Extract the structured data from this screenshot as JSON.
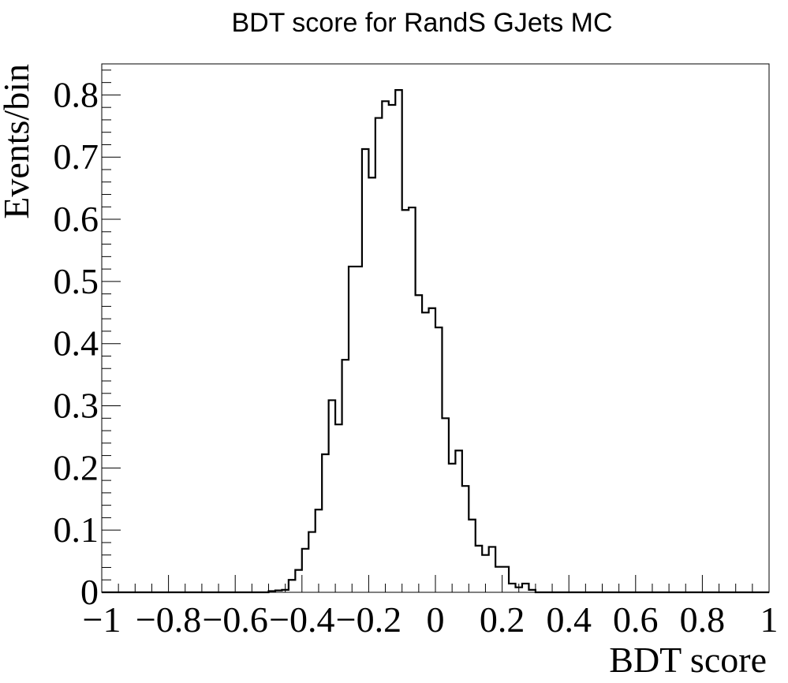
{
  "chart_data": {
    "type": "bar",
    "title": "BDT score for RandS GJets MC",
    "xlabel": "BDT score",
    "ylabel": "Events/bin",
    "xlim": [
      -1,
      1
    ],
    "ylim": [
      0,
      0.85
    ],
    "grid": false,
    "x_ticks": [
      -1,
      -0.8,
      -0.6,
      -0.4,
      -0.2,
      0,
      0.2,
      0.4,
      0.6,
      0.8,
      1
    ],
    "x_tick_labels": [
      "−1",
      "−0.8",
      "−0.6",
      "−0.4",
      "−0.2",
      "0",
      "0.2",
      "0.4",
      "0.6",
      "0.8",
      "1"
    ],
    "y_ticks": [
      0,
      0.1,
      0.2,
      0.3,
      0.4,
      0.5,
      0.6,
      0.7,
      0.8
    ],
    "y_tick_labels": [
      "0",
      "0.1",
      "0.2",
      "0.3",
      "0.4",
      "0.5",
      "0.6",
      "0.7",
      "0.8"
    ],
    "bin_edges": [
      -1,
      -0.98,
      -0.96,
      -0.94,
      -0.92,
      -0.9,
      -0.88,
      -0.86,
      -0.84,
      -0.82,
      -0.8,
      -0.78,
      -0.76,
      -0.74,
      -0.72,
      -0.7,
      -0.68,
      -0.66,
      -0.64,
      -0.62,
      -0.6,
      -0.58,
      -0.56,
      -0.54,
      -0.52,
      -0.5,
      -0.48,
      -0.46,
      -0.44,
      -0.42,
      -0.4,
      -0.38,
      -0.36,
      -0.34,
      -0.32,
      -0.3,
      -0.28,
      -0.26,
      -0.24,
      -0.22,
      -0.2,
      -0.18,
      -0.16,
      -0.14,
      -0.12,
      -0.1,
      -0.08,
      -0.06,
      -0.04,
      -0.02,
      0,
      0.02,
      0.04,
      0.06,
      0.08,
      0.1,
      0.12,
      0.14,
      0.16,
      0.18,
      0.2,
      0.22,
      0.24,
      0.26,
      0.28,
      0.3,
      0.32,
      0.34,
      0.36,
      0.38,
      0.4,
      0.42,
      0.44,
      0.46,
      0.48,
      0.5,
      0.52,
      0.54,
      0.56,
      0.58,
      0.6,
      0.62,
      0.64,
      0.66,
      0.68,
      0.7,
      0.72,
      0.74,
      0.76,
      0.78,
      0.8,
      0.82,
      0.84,
      0.86,
      0.88,
      0.9,
      0.92,
      0.94,
      0.96,
      0.98,
      1
    ],
    "values": [
      0,
      0,
      0,
      0,
      0,
      0,
      0,
      0,
      0,
      0,
      0,
      0,
      0,
      0,
      0,
      0,
      0,
      0,
      0,
      0,
      0,
      0,
      0,
      0,
      0,
      0.002,
      0.003,
      0.004,
      0.02,
      0.036,
      0.07,
      0.097,
      0.133,
      0.222,
      0.309,
      0.27,
      0.374,
      0.524,
      0.524,
      0.713,
      0.667,
      0.763,
      0.79,
      0.784,
      0.808,
      0.615,
      0.619,
      0.478,
      0.45,
      0.457,
      0.426,
      0.28,
      0.207,
      0.228,
      0.171,
      0.117,
      0.075,
      0.06,
      0.073,
      0.041,
      0.041,
      0.014,
      0.008,
      0.014,
      0.004,
      0,
      0,
      0,
      0,
      0,
      0,
      0,
      0,
      0,
      0,
      0,
      0,
      0,
      0,
      0,
      0,
      0,
      0,
      0,
      0,
      0,
      0,
      0,
      0,
      0,
      0,
      0,
      0,
      0,
      0,
      0,
      0,
      0,
      0,
      0
    ],
    "line_color": "#000000"
  }
}
